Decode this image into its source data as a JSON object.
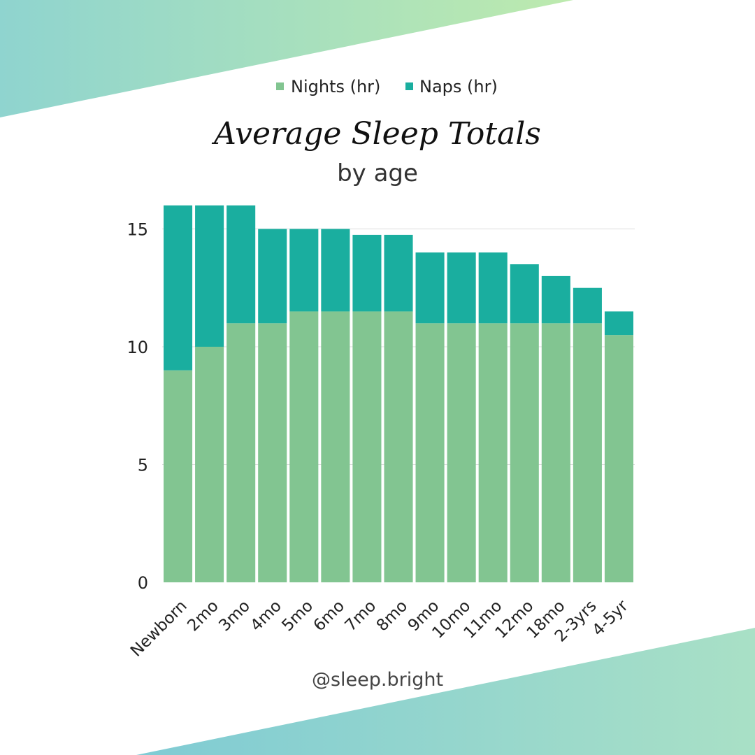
{
  "colors": {
    "nights": "#82c591",
    "naps": "#1aae9f",
    "top_band_start": "#8fd4cf",
    "top_band_end": "#bdeaae",
    "bottom_band_start": "#7fcbd4",
    "bottom_band_end": "#a9e0c6"
  },
  "handle": "@sleep.bright",
  "chart_data": {
    "type": "bar",
    "stacked": true,
    "title": "Average Sleep Totals",
    "subtitle": "by age",
    "categories": [
      "Newborn",
      "2mo",
      "3mo",
      "4mo",
      "5mo",
      "6mo",
      "7mo",
      "8mo",
      "9mo",
      "10mo",
      "11mo",
      "12mo",
      "18mo",
      "2-3yrs",
      "4-5yr"
    ],
    "series": [
      {
        "name": "Nights (hr)",
        "values": [
          9,
          10,
          11,
          11,
          11.5,
          11.5,
          11.5,
          11.5,
          11,
          11,
          11,
          11,
          11,
          11,
          10.5
        ]
      },
      {
        "name": "Naps (hr)",
        "values": [
          7,
          6,
          5,
          4,
          3.5,
          3.5,
          3.25,
          3.25,
          3,
          3,
          3,
          2.5,
          2,
          1.5,
          1
        ]
      }
    ],
    "yticks": [
      0,
      5,
      10,
      15
    ],
    "ylim": [
      0,
      20
    ],
    "grid": true,
    "legend": "top-center"
  }
}
